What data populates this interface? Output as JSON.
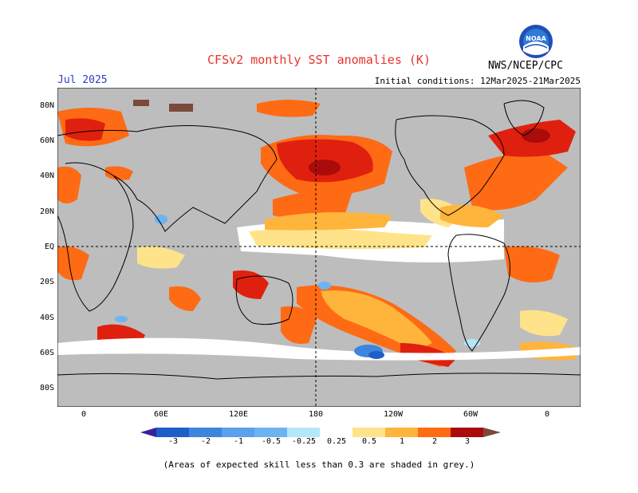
{
  "header": {
    "title": "CFSv2 monthly SST anomalies (K)",
    "month": "Jul 2025",
    "initial_conditions": "Initial conditions: 12Mar2025-21Mar2025",
    "agency": "NWS/NCEP/CPC",
    "logo_text": "NOAA"
  },
  "map": {
    "lat_labels": [
      "80N",
      "60N",
      "40N",
      "20N",
      "EQ",
      "20S",
      "40S",
      "60S",
      "80S"
    ],
    "lon_labels": [
      "0",
      "60E",
      "120E",
      "180",
      "120W",
      "60W",
      "0"
    ],
    "mask_color": "#bdbdbd",
    "land_color": "#bdbdbd"
  },
  "colorbar": {
    "labels": [
      "-3",
      "-2",
      "-1",
      "-0.5",
      "-0.25",
      "0.25",
      "0.5",
      "1",
      "2",
      "3"
    ],
    "colors": [
      "#3b1f9e",
      "#1e5ec8",
      "#3d86e0",
      "#6cb4f0",
      "#b4e8f8",
      "#ffffff",
      "#ffe38a",
      "#ffb43c",
      "#ff6a14",
      "#e0200e",
      "#aa0c0c",
      "#7a4a3a"
    ]
  },
  "footnote": "(Areas of expected skill less than 0.3 are shaded in grey.)"
}
